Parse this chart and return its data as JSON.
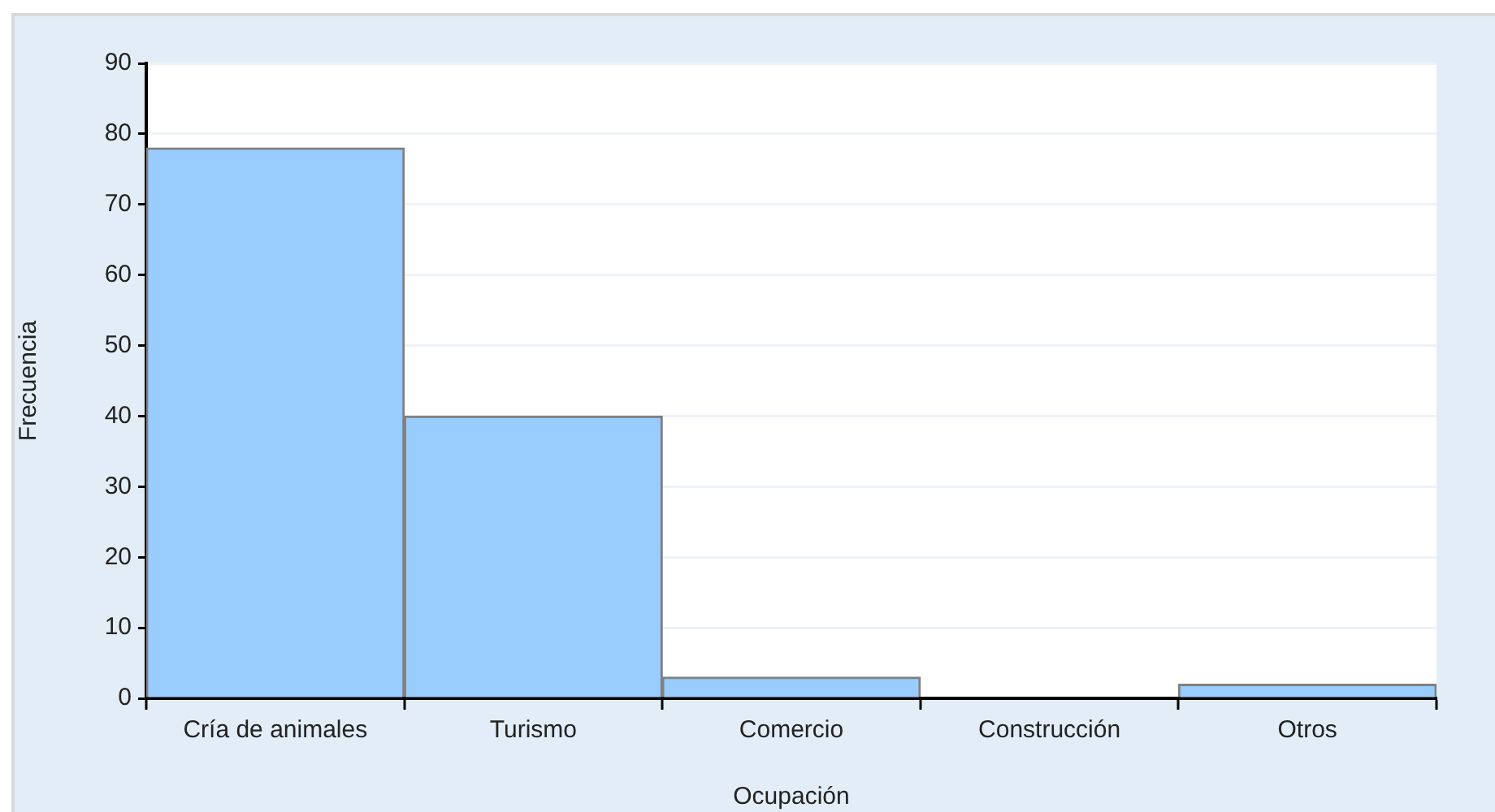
{
  "chart_data": {
    "type": "bar",
    "xlabel": "Ocupación",
    "ylabel": "Frecuencia",
    "categories": [
      "Cría de animales",
      "Turismo",
      "Comercio",
      "Construcción",
      "Otros"
    ],
    "values": [
      78,
      40,
      3,
      0,
      2
    ],
    "color": "#99ccff",
    "ylim": [
      0,
      90
    ],
    "yticks": [
      0,
      10,
      20,
      30,
      40,
      50,
      60,
      70,
      80,
      90
    ],
    "grid": "y"
  }
}
